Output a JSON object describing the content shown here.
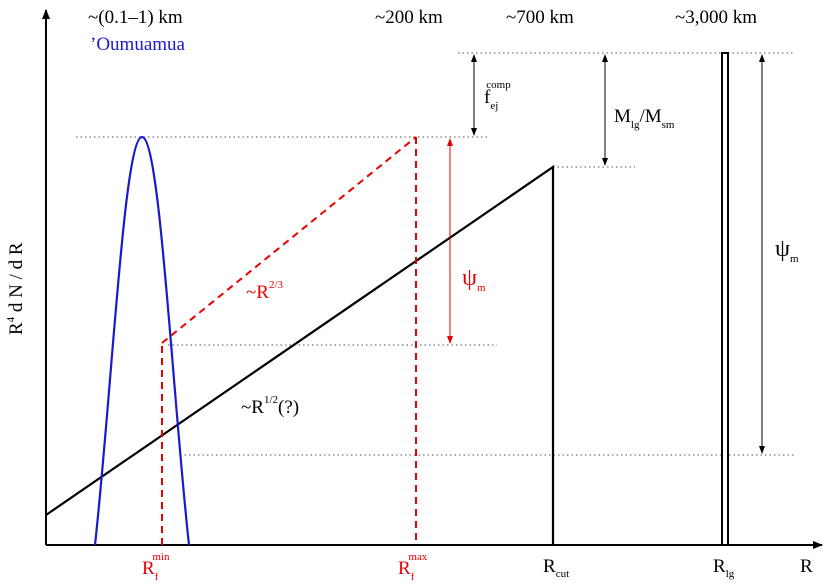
{
  "size_labels": {
    "oumuamua_size": "~(0.1–1) km",
    "oumuamua_name": "’Oumuamua",
    "size_200": "~200 km",
    "size_700": "~700 km",
    "size_3000": "~3,000 km"
  },
  "axes": {
    "y_label": {
      "base": "R",
      "sup": "4",
      "rest": " d N / d R"
    },
    "x_label": "R"
  },
  "x_ticks": {
    "rf_min": {
      "base": "R",
      "sub": "f",
      "sup": "min"
    },
    "rf_max": {
      "base": "R",
      "sub": "f",
      "sup": "max"
    },
    "r_cut": {
      "base": "R",
      "sub": "cut"
    },
    "r_lg": {
      "base": "R",
      "sub": "lg"
    }
  },
  "annotations": {
    "slope_23": {
      "prefix": "~R",
      "sup": "2/3"
    },
    "slope_12": {
      "prefix": "~R",
      "sup": "1/2",
      "suffix": "(?)"
    },
    "psi_m_red": {
      "base": "ψ",
      "sub": "m"
    },
    "psi_m_black": {
      "base": "ψ",
      "sub": "m"
    },
    "f_ej_comp": {
      "base": "f",
      "sub": "ej",
      "sup": "comp"
    },
    "mass_ratio": {
      "a": "M",
      "a_sub": "lg",
      "slash": "/M",
      "b_sub": "sm"
    }
  },
  "colors": {
    "blue": "#1a1acc",
    "red": "#e60000",
    "black": "#000000",
    "dotted": "#555555"
  }
}
